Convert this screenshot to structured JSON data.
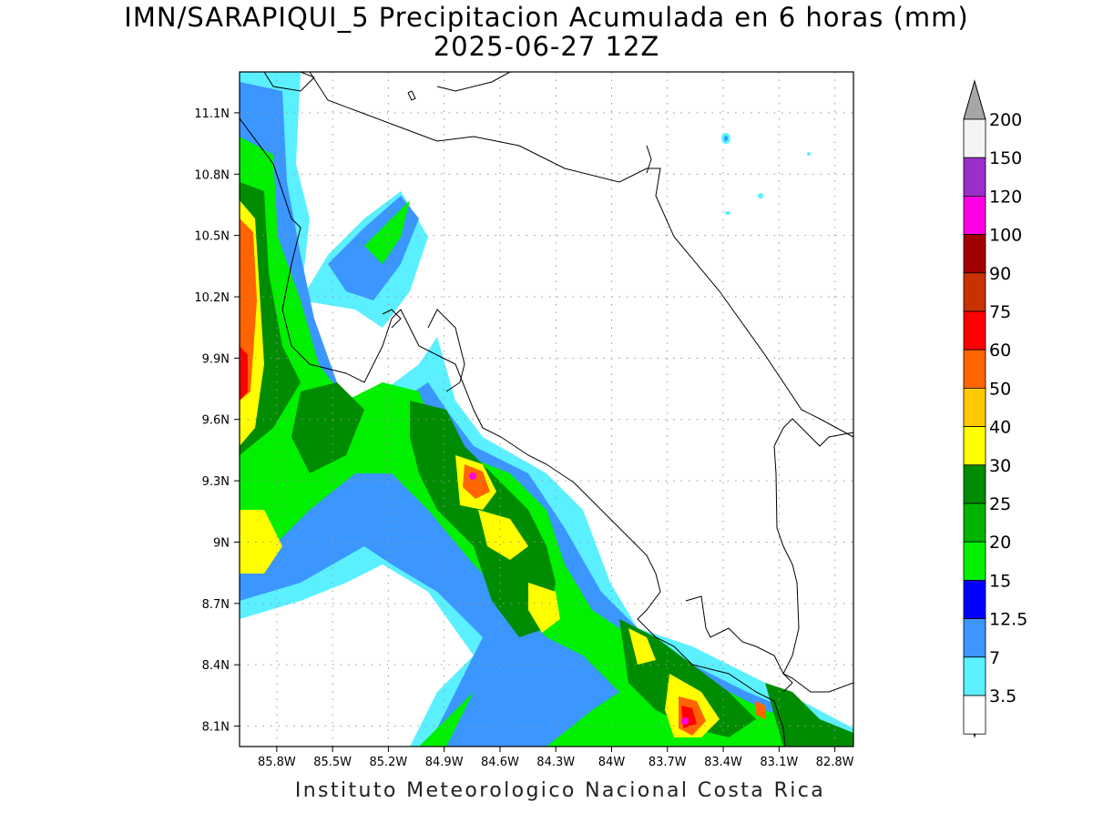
{
  "header": {
    "title_line1": "IMN/SARAPIQUI_5 Precipitacion Acumulada en 6 horas (mm)",
    "title_line2": "2025-06-27 12Z"
  },
  "footer": {
    "credit": "Instituto Meteorologico Nacional Costa Rica"
  },
  "map": {
    "projection": "lat-lon",
    "lon_range": [
      -86.0,
      -82.7
    ],
    "lat_range": [
      8.0,
      11.3
    ],
    "lon_ticks": [
      "85.8W",
      "85.5W",
      "85.2W",
      "84.9W",
      "84.6W",
      "84.3W",
      "84W",
      "83.7W",
      "83.4W",
      "83.1W",
      "82.8W"
    ],
    "lat_ticks": [
      "11.1N",
      "10.8N",
      "10.5N",
      "10.2N",
      "9.9N",
      "9.6N",
      "9.3N",
      "9N",
      "8.7N",
      "8.4N",
      "8.1N"
    ],
    "grid": "dotted"
  },
  "colorbar": {
    "unit": "mm",
    "labels": [
      "200",
      "150",
      "120",
      "100",
      "90",
      "75",
      "60",
      "50",
      "40",
      "30",
      "25",
      "20",
      "15",
      "12.5",
      "7",
      "3.5"
    ],
    "colors_top_to_bottom": [
      "#f4f4f4",
      "#9b30c8",
      "#ff00e6",
      "#a00000",
      "#c83200",
      "#ff0000",
      "#ff6400",
      "#ffc800",
      "#ffff00",
      "#008c00",
      "#00b400",
      "#00f000",
      "#0000ff",
      "#3c96ff",
      "#5af0ff",
      "#ffffff"
    ],
    "over_color": "#a6a6a6",
    "under_color": "#ffffff"
  }
}
